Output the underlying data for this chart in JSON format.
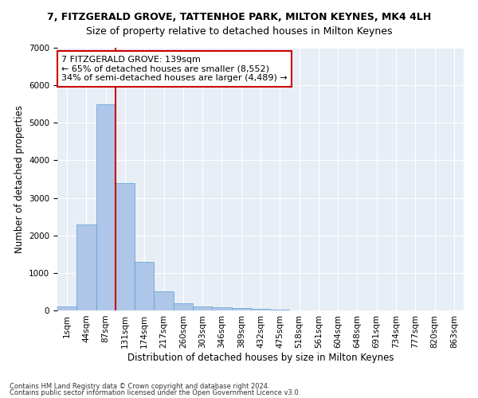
{
  "title": "7, FITZGERALD GROVE, TATTENHOE PARK, MILTON KEYNES, MK4 4LH",
  "subtitle": "Size of property relative to detached houses in Milton Keynes",
  "xlabel": "Distribution of detached houses by size in Milton Keynes",
  "ylabel": "Number of detached properties",
  "footnote1": "Contains HM Land Registry data © Crown copyright and database right 2024.",
  "footnote2": "Contains public sector information licensed under the Open Government Licence v3.0.",
  "bar_values": [
    100,
    2300,
    5500,
    3400,
    1300,
    500,
    200,
    100,
    80,
    60,
    50,
    20,
    10,
    5,
    3,
    2,
    2,
    1,
    1,
    1,
    0
  ],
  "bar_labels": [
    "1sqm",
    "44sqm",
    "87sqm",
    "131sqm",
    "174sqm",
    "217sqm",
    "260sqm",
    "303sqm",
    "346sqm",
    "389sqm",
    "432sqm",
    "475sqm",
    "518sqm",
    "561sqm",
    "604sqm",
    "648sqm",
    "691sqm",
    "734sqm",
    "777sqm",
    "820sqm",
    "863sqm"
  ],
  "bar_color": "#aec6e8",
  "bar_edge_color": "#5a9fd4",
  "vline_x": 2.5,
  "vline_color": "#cc0000",
  "annotation_text": "7 FITZGERALD GROVE: 139sqm\n← 65% of detached houses are smaller (8,552)\n34% of semi-detached houses are larger (4,489) →",
  "annotation_box_color": "#ffffff",
  "annotation_box_edge": "#cc0000",
  "ylim": [
    0,
    7000
  ],
  "yticks": [
    0,
    1000,
    2000,
    3000,
    4000,
    5000,
    6000,
    7000
  ],
  "plot_bg_color": "#e8eef6",
  "title_fontsize": 9,
  "subtitle_fontsize": 9,
  "axis_label_fontsize": 8.5,
  "tick_fontsize": 7.5,
  "annotation_fontsize": 8
}
